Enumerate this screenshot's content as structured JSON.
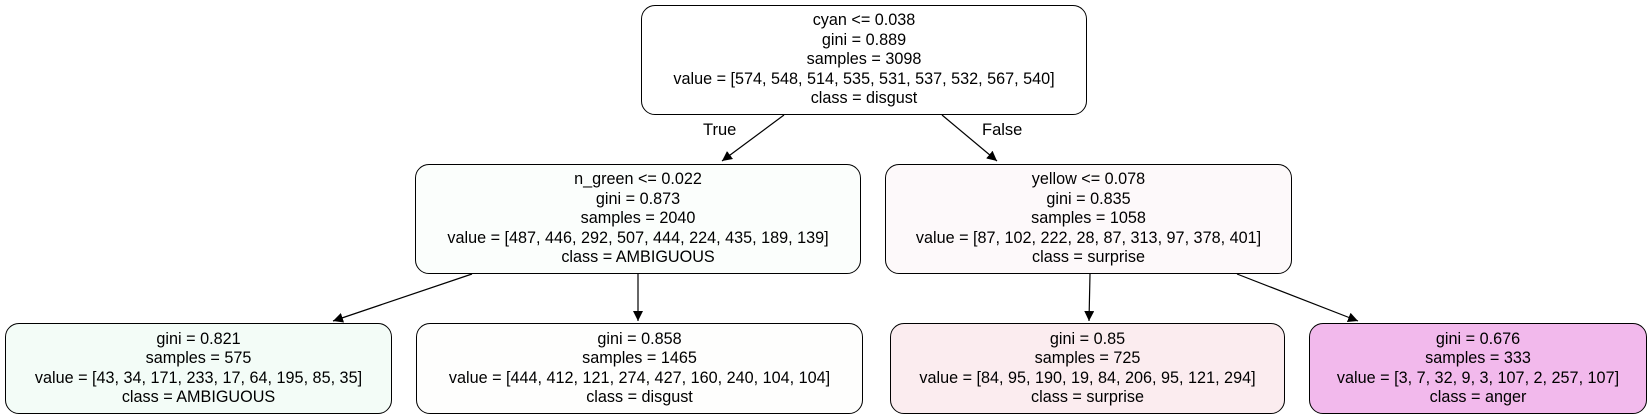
{
  "tree": {
    "edge_labels": {
      "true": "True",
      "false": "False"
    },
    "nodes": {
      "root": {
        "lines": [
          "cyan <= 0.038",
          "gini = 0.889",
          "samples = 3098",
          "value = [574, 548, 514, 535, 531, 537, 532, 567, 540]",
          "class = disgust"
        ],
        "fill": "#ffffff"
      },
      "left": {
        "lines": [
          "n_green <= 0.022",
          "gini = 0.873",
          "samples = 2040",
          "value = [487, 446, 292, 507, 444, 224, 435, 189, 139]",
          "class = AMBIGUOUS"
        ],
        "fill": "#fbfefc"
      },
      "right": {
        "lines": [
          "yellow <= 0.078",
          "gini = 0.835",
          "samples = 1058",
          "value = [87, 102, 222, 28, 87, 313, 97, 378, 401]",
          "class = surprise"
        ],
        "fill": "#fdf9fa"
      },
      "left_left": {
        "lines": [
          "gini = 0.821",
          "samples = 575",
          "value = [43, 34, 171, 233, 17, 64, 195, 85, 35]",
          "class = AMBIGUOUS"
        ],
        "fill": "#f3fcf7"
      },
      "left_right": {
        "lines": [
          "gini = 0.858",
          "samples = 1465",
          "value = [444, 412, 121, 274, 427, 160, 240, 104, 104]",
          "class = disgust"
        ],
        "fill": "#fefefd"
      },
      "right_left": {
        "lines": [
          "gini = 0.85",
          "samples = 725",
          "value = [84, 95, 190, 19, 84, 206, 95, 121, 294]",
          "class = surprise"
        ],
        "fill": "#fbecef"
      },
      "right_right": {
        "lines": [
          "gini = 0.676",
          "samples = 333",
          "value = [3, 7, 32, 9, 3, 107, 2, 257, 107]",
          "class = anger"
        ],
        "fill": "#f2b9ec"
      }
    },
    "colors": {
      "stroke": "#000000",
      "background": "#ffffff"
    }
  }
}
